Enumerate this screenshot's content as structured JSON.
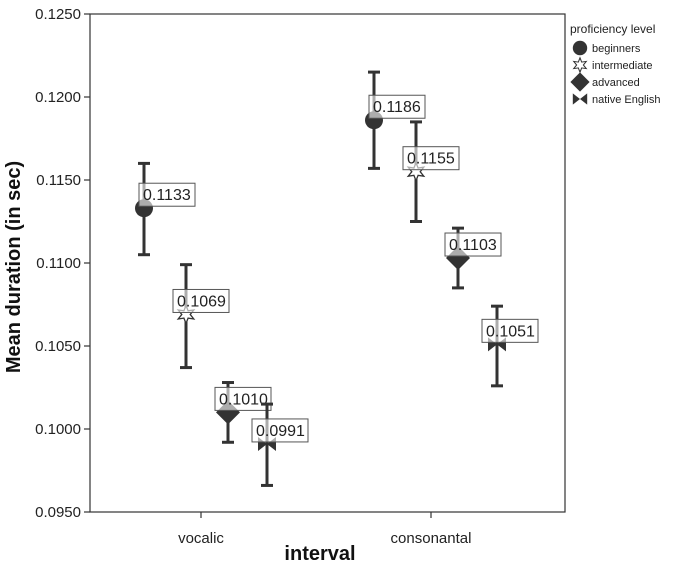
{
  "chart_data": {
    "type": "scatter",
    "xlabel": "interval",
    "ylabel": "Mean duration (in sec)",
    "categories": [
      "vocalic",
      "consonantal"
    ],
    "ylim": [
      0.095,
      0.125
    ],
    "yticks": [
      "0.0950",
      "0.1000",
      "0.1050",
      "0.1100",
      "0.1150",
      "0.1200",
      "0.1250"
    ],
    "grid": false,
    "legend_title": "proficiency level",
    "legend_position": "top-right",
    "series": [
      {
        "name": "beginners",
        "marker": "circle",
        "values": [
          0.1133,
          0.1186
        ],
        "labels": [
          "0.1133",
          "0.1186"
        ],
        "err_low": [
          0.1105,
          0.1157
        ],
        "err_high": [
          0.116,
          0.1215
        ]
      },
      {
        "name": "intermediate",
        "marker": "star",
        "values": [
          0.1069,
          0.1155
        ],
        "labels": [
          "0.1069",
          "0.1155"
        ],
        "err_low": [
          0.1037,
          0.1125
        ],
        "err_high": [
          0.1099,
          0.1185
        ]
      },
      {
        "name": "advanced",
        "marker": "diamond",
        "values": [
          0.101,
          0.1103
        ],
        "labels": [
          "0.1010",
          "0.1103"
        ],
        "err_low": [
          0.0992,
          0.1085
        ],
        "err_high": [
          0.1028,
          0.1121
        ]
      },
      {
        "name": "native English",
        "marker": "bowtie",
        "values": [
          0.0991,
          0.1051
        ],
        "labels": [
          "0.0991",
          "0.1051"
        ],
        "err_low": [
          0.0966,
          0.1026
        ],
        "err_high": [
          0.1015,
          0.1074
        ]
      }
    ],
    "colors": {
      "marker": "#333333",
      "axis": "#333333",
      "label_box": "#555555"
    }
  }
}
